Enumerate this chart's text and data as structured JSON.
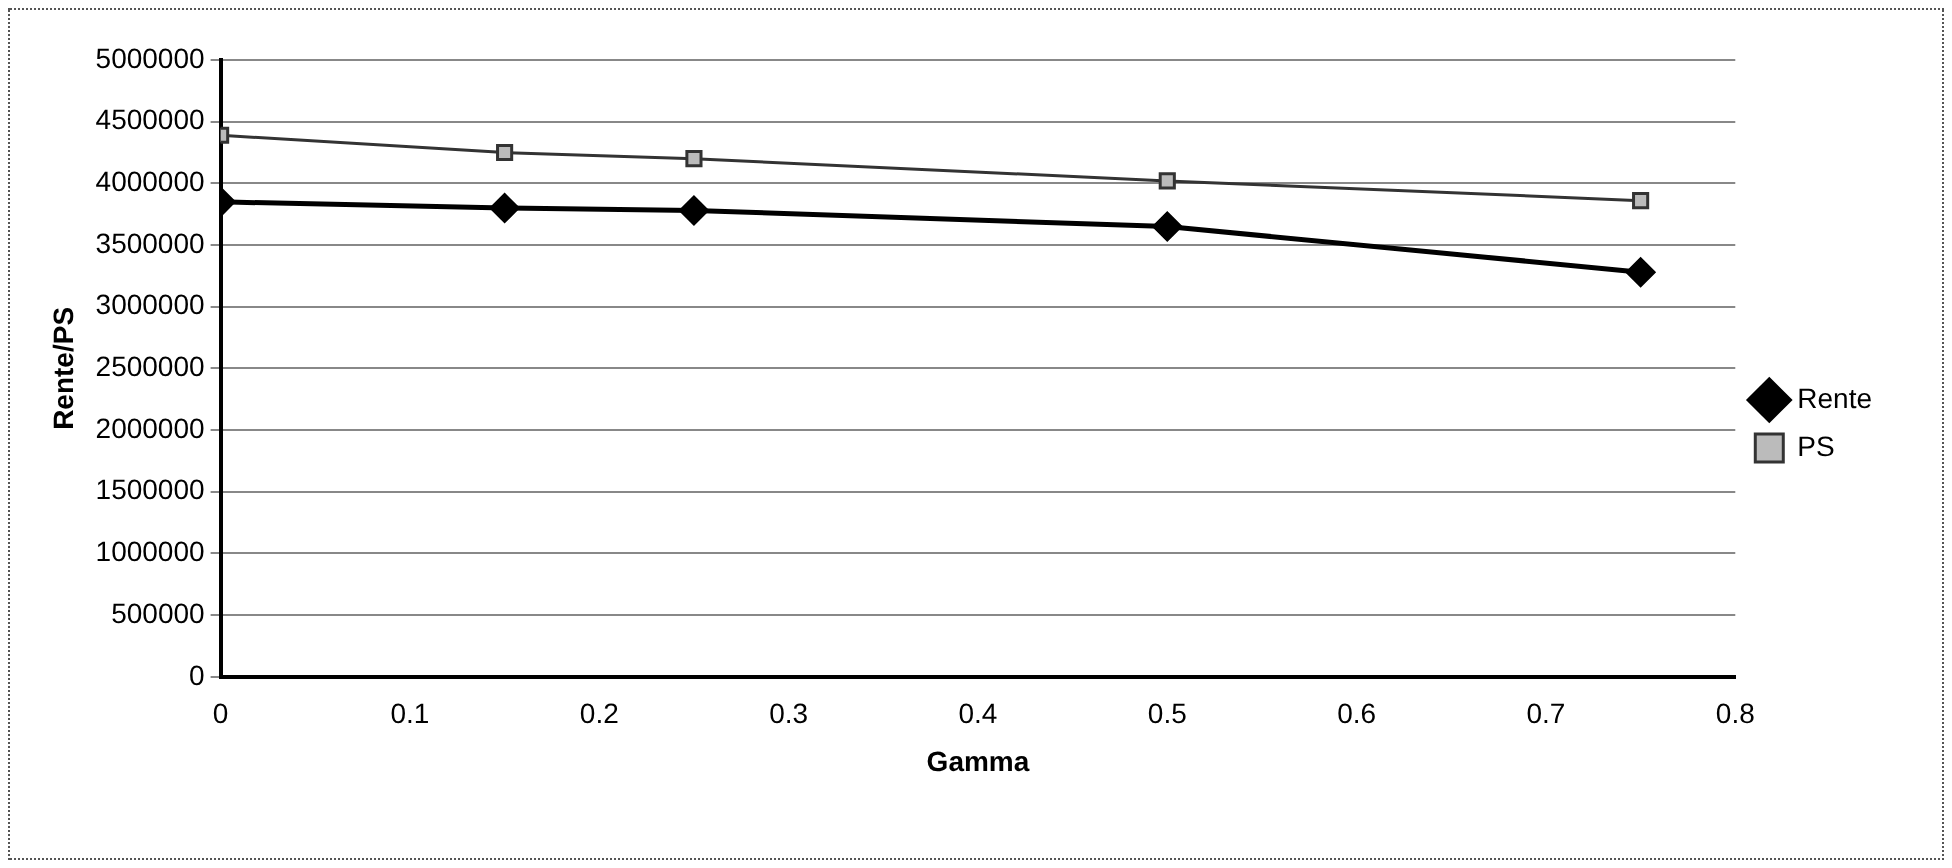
{
  "chart_data": {
    "type": "line",
    "xlabel": "Gamma",
    "ylabel": "Rente/PS",
    "x": [
      0,
      0.15,
      0.25,
      0.5,
      0.75
    ],
    "series": [
      {
        "name": "Rente",
        "color": "#000000",
        "marker": "diamond",
        "values": [
          3850000,
          3800000,
          3780000,
          3650000,
          3280000
        ]
      },
      {
        "name": "PS",
        "color": "#333333",
        "marker": "square",
        "values": [
          4390000,
          4250000,
          4200000,
          4020000,
          3860000
        ]
      }
    ],
    "xlim": [
      0,
      0.8
    ],
    "xticks": [
      0,
      0.1,
      0.2,
      0.3,
      0.4,
      0.5,
      0.6,
      0.7,
      0.8
    ],
    "ylim": [
      0,
      5000000
    ],
    "yticks": [
      0,
      500000,
      1000000,
      1500000,
      2000000,
      2500000,
      3000000,
      3500000,
      4000000,
      4500000,
      5000000
    ],
    "grid": "y",
    "legend": "right",
    "line_style": "solid"
  }
}
